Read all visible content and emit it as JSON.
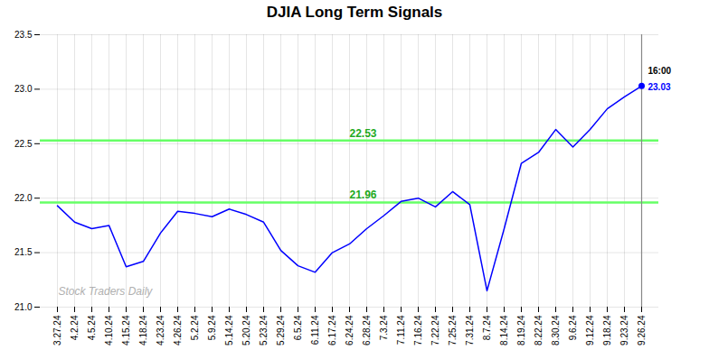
{
  "chart_data": {
    "type": "line",
    "title": "DJIA Long Term Signals",
    "categories": [
      "3.27.24",
      "4.2.24",
      "4.5.24",
      "4.10.24",
      "4.15.24",
      "4.18.24",
      "4.23.24",
      "4.26.24",
      "5.2.24",
      "5.9.24",
      "5.14.24",
      "5.20.24",
      "5.23.24",
      "5.29.24",
      "6.5.24",
      "6.11.24",
      "6.17.24",
      "6.24.24",
      "6.28.24",
      "7.3.24",
      "7.11.24",
      "7.16.24",
      "7.22.24",
      "7.25.24",
      "7.31.24",
      "8.7.24",
      "8.14.24",
      "8.19.24",
      "8.22.24",
      "8.30.24",
      "9.6.24",
      "9.12.24",
      "9.18.24",
      "9.23.24",
      "9.26.24"
    ],
    "values": [
      21.93,
      21.78,
      21.72,
      21.75,
      21.37,
      21.42,
      21.68,
      21.88,
      21.86,
      21.83,
      21.9,
      21.85,
      21.78,
      21.52,
      21.38,
      21.32,
      21.5,
      21.58,
      21.72,
      21.84,
      21.97,
      22.0,
      21.92,
      22.06,
      21.94,
      21.15,
      21.72,
      22.32,
      22.42,
      22.63,
      22.47,
      22.63,
      22.82,
      22.93,
      23.03
    ],
    "color": "blue",
    "ylim": [
      21.0,
      23.5
    ],
    "yticks": [
      {
        "value": 21.0,
        "label": "21.0"
      },
      21.5,
      {
        "value": 22.0,
        "label": "22.0"
      },
      22.5,
      {
        "value": 23.0,
        "label": "23.0"
      },
      23.5
    ],
    "grid": true,
    "hlines": [
      {
        "value": 21.96,
        "label": "21.96",
        "color": "#66ff66",
        "label_color": "#22aa22"
      },
      {
        "value": 22.53,
        "label": "22.53",
        "color": "#66ff66",
        "label_color": "#22aa22"
      }
    ],
    "last_point": {
      "time_label": "16:00",
      "time_color": "black",
      "value": 23.03,
      "value_label": "23.03",
      "value_color": "blue",
      "rule_color": "#888888"
    },
    "watermark": {
      "text": "Stock Traders Daily",
      "color": "#b0b0b0"
    }
  }
}
